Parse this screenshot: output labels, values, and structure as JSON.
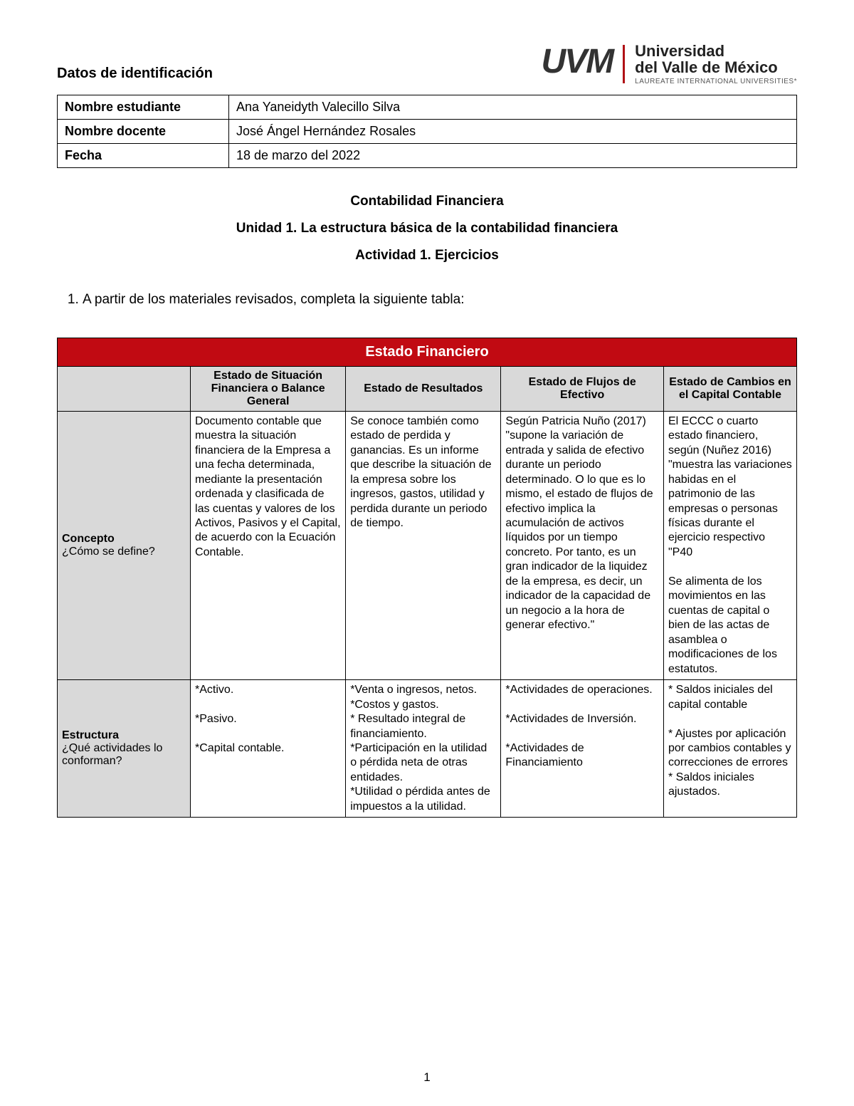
{
  "colors": {
    "banner_bg": "#c10a12",
    "banner_text": "#ffffff",
    "header_bg": "#d9d9d9",
    "border": "#000000",
    "page_bg": "#ffffff",
    "text": "#000000",
    "logo_divider": "#b01116"
  },
  "logo": {
    "acronym": "UVM",
    "uni_line1": "Universidad",
    "uni_line2": "del Valle de México",
    "tagline": "LAUREATE INTERNATIONAL UNIVERSITIES*"
  },
  "id_section_title": "Datos de identificación",
  "id_rows": {
    "student_label": "Nombre estudiante",
    "student_value": "Ana Yaneidyth Valecillo Silva",
    "teacher_label": "Nombre docente",
    "teacher_value": "José Ángel Hernández Rosales",
    "date_label": "Fecha",
    "date_value": "18 de marzo del 2022"
  },
  "headings": {
    "course": "Contabilidad Financiera",
    "unit": "Unidad 1. La estructura básica de la contabilidad financiera",
    "activity": "Actividad 1. Ejercicios"
  },
  "instruction_item": "A partir de los materiales revisados, completa la siguiente tabla:",
  "fin_table": {
    "banner": "Estado Financiero",
    "col_headers": [
      "Estado de Situación Financiera o Balance General",
      "Estado de Resultados",
      "Estado de Flujos de Efectivo",
      "Estado de Cambios en el Capital Contable"
    ],
    "rows": [
      {
        "title": "Concepto",
        "subtitle": "¿Cómo se define?",
        "cells": [
          "Documento contable que muestra la situación financiera de la Empresa a una fecha determinada, mediante la presentación ordenada y clasificada de las cuentas y valores de los Activos, Pasivos y el Capital, de acuerdo con la Ecuación Contable.",
          "Se conoce también como estado de perdida y ganancias. Es un informe que describe la situación de la empresa sobre los ingresos, gastos, utilidad y perdida durante un periodo de tiempo.",
          "Según Patricia Nuño (2017) \"supone la variación de entrada y salida de efectivo durante un periodo determinado. O lo que es lo mismo, el estado de flujos de efectivo implica la acumulación de activos líquidos por un tiempo concreto. Por tanto, es un gran indicador de la liquidez de la empresa, es decir, un indicador de la capacidad de un negocio a la hora de generar efectivo.\"",
          "El ECCC o cuarto estado financiero, según (Nuñez 2016) \"muestra las variaciones habidas en el patrimonio de las empresas o personas físicas durante el ejercicio respectivo \"P40\n\nSe alimenta de los movimientos en las cuentas de capital o bien de las actas de asamblea o modificaciones de los estatutos."
        ]
      },
      {
        "title": "Estructura",
        "subtitle": "¿Qué actividades lo conforman?",
        "cells": [
          "*Activo.\n\n*Pasivo.\n\n*Capital contable.",
          "*Venta o ingresos, netos.\n*Costos y gastos.\n* Resultado integral de financiamiento.\n*Participación en la utilidad o pérdida neta de otras entidades.\n*Utilidad o pérdida antes de impuestos a la utilidad.",
          "*Actividades de operaciones.\n\n*Actividades de Inversión.\n\n*Actividades de Financiamiento",
          "* Saldos iniciales del capital contable\n\n* Ajustes por aplicación por cambios contables y correcciones de errores\n* Saldos iniciales ajustados."
        ]
      }
    ]
  },
  "page_number": "1"
}
